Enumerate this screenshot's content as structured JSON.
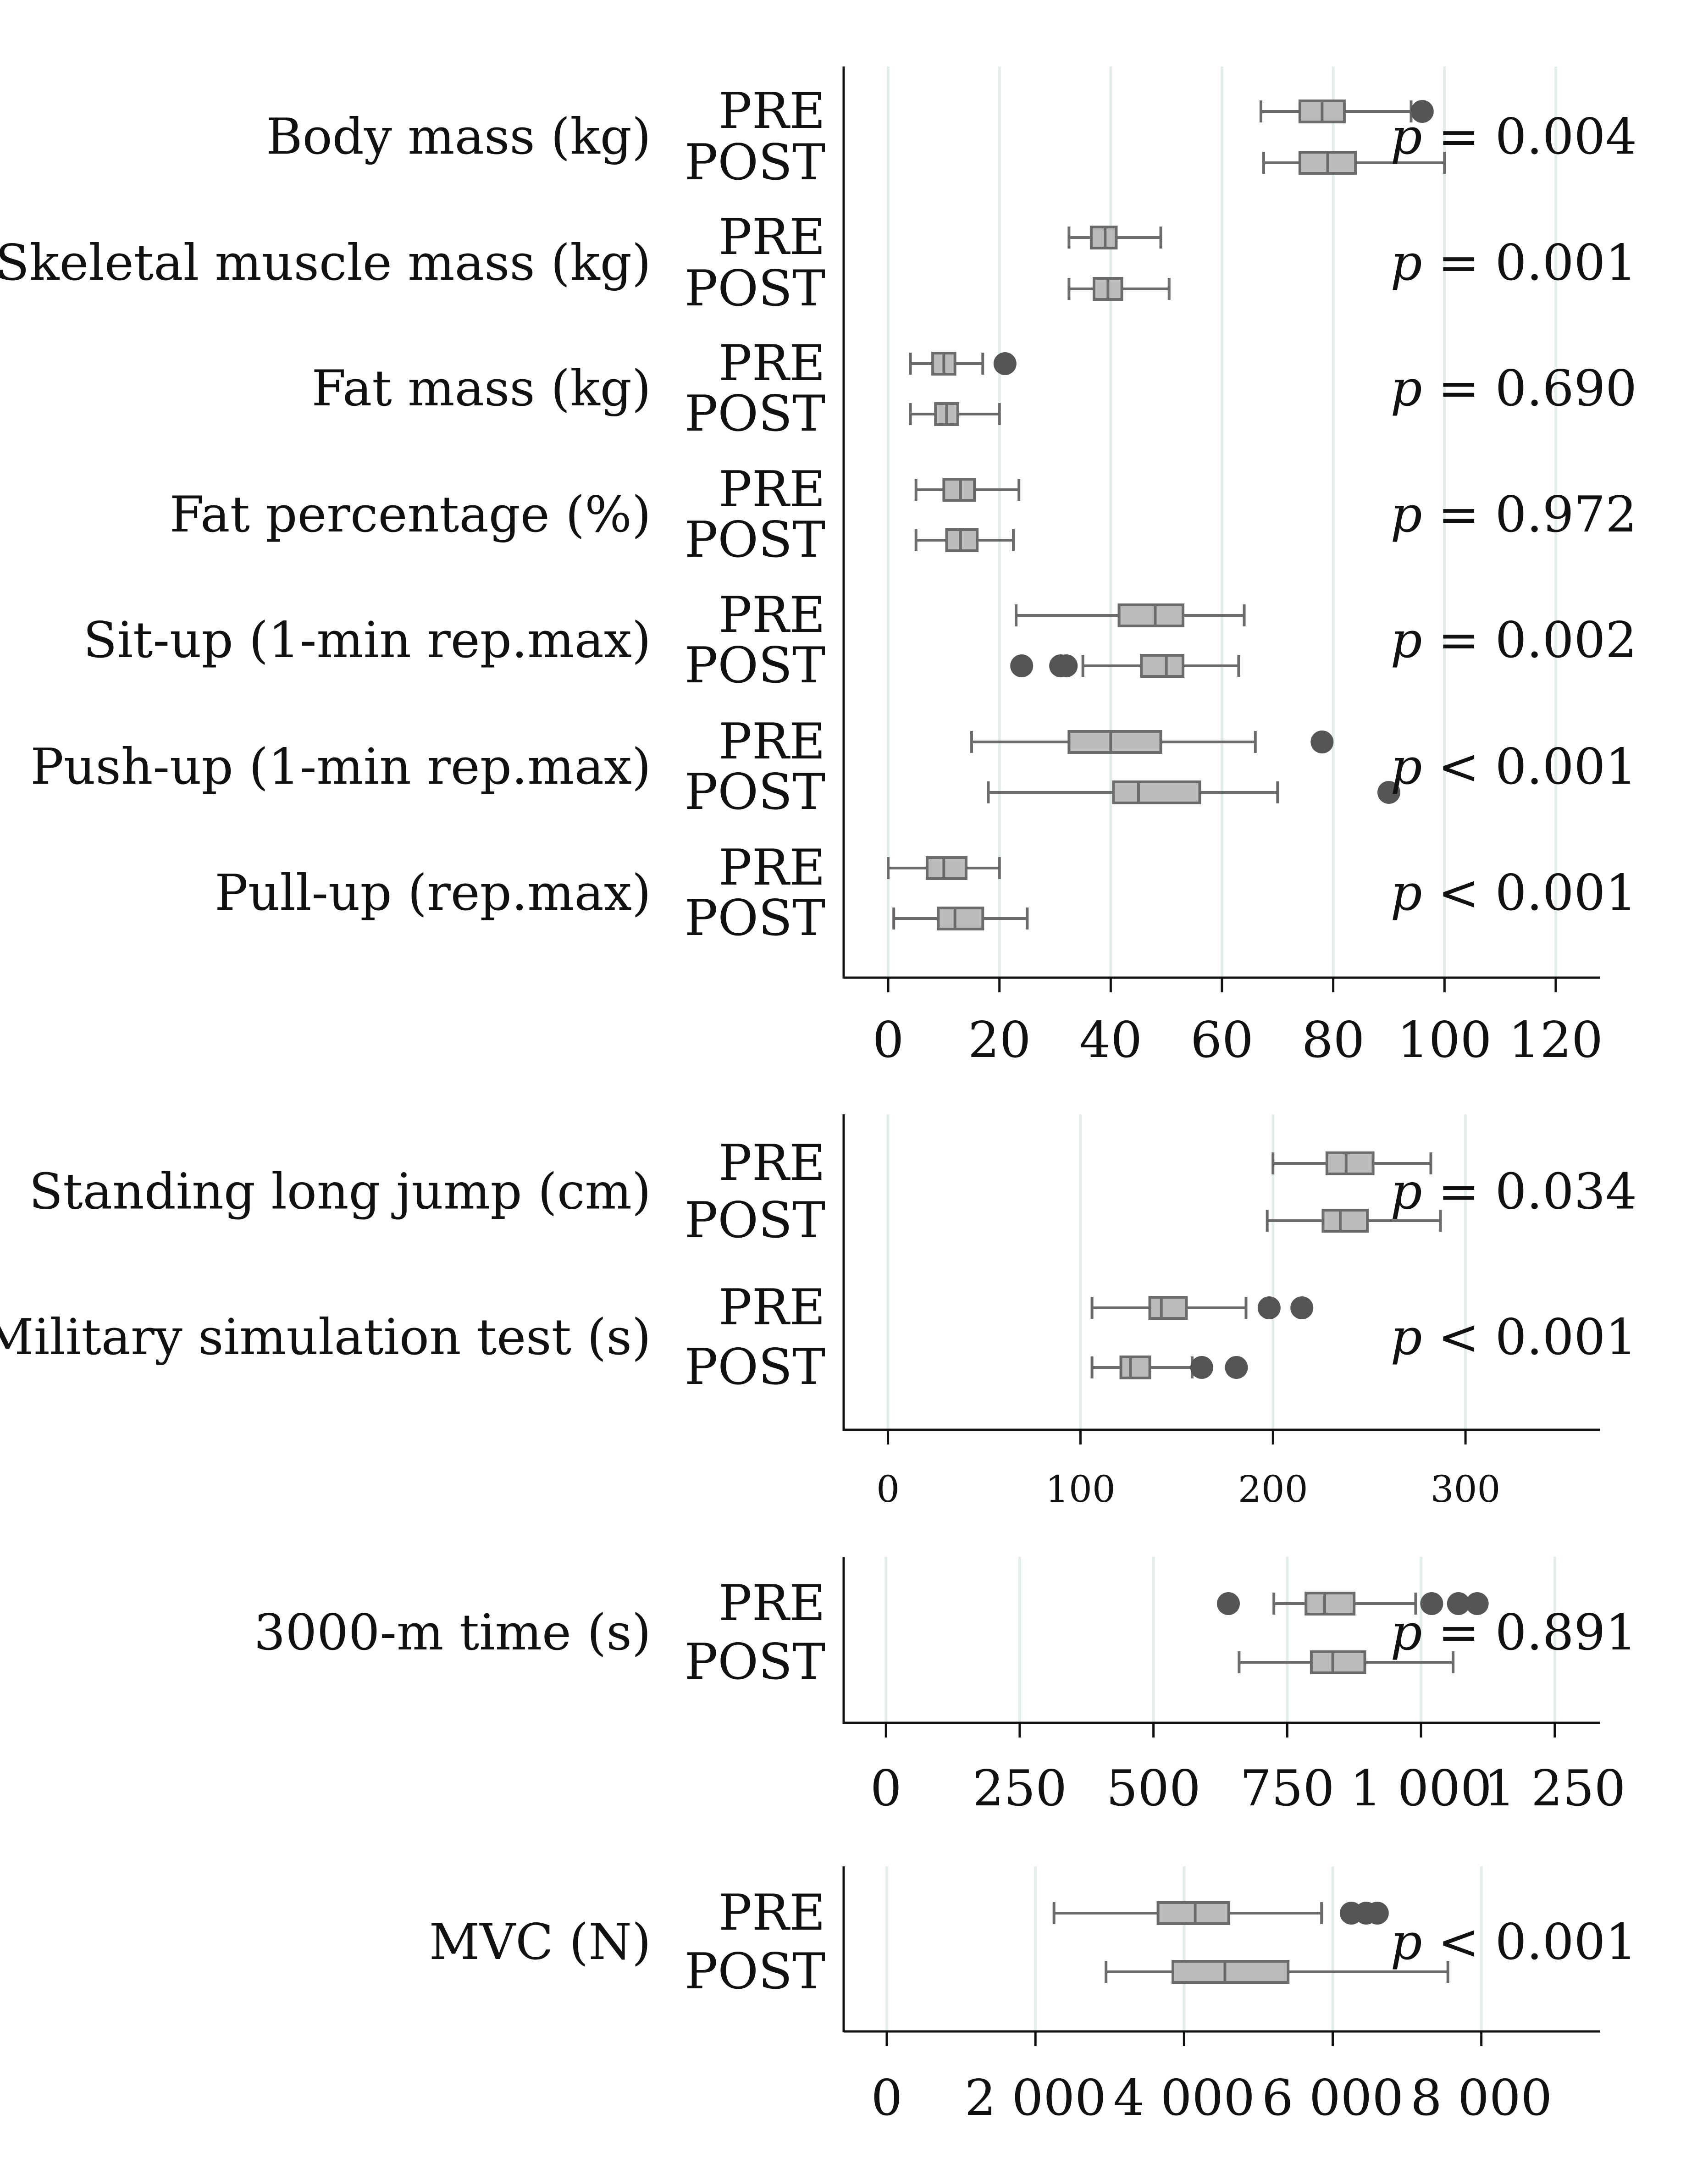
{
  "chart_data": [
    {
      "type": "boxplot",
      "panel": "anthropometrics-strength",
      "xlim": [
        -8,
        128
      ],
      "xticks": [
        0,
        20,
        40,
        60,
        80,
        100,
        120
      ],
      "xtick_labels": [
        "0",
        "20",
        "40",
        "60",
        "80",
        "100",
        "120"
      ],
      "grid": true,
      "measures": [
        {
          "label": "Body mass (kg)",
          "p_prefix": "p",
          "p_text": "= 0.004",
          "groups": [
            {
              "name": "PRE",
              "whisker_low": 67,
              "q1": 74,
              "median": 78,
              "q3": 82,
              "whisker_high": 94,
              "outliers": [
                96
              ]
            },
            {
              "name": "POST",
              "whisker_low": 67.5,
              "q1": 74,
              "median": 79,
              "q3": 84,
              "whisker_high": 100,
              "outliers": []
            }
          ]
        },
        {
          "label": "Skeletal muscle mass (kg)",
          "p_prefix": "p",
          "p_text": "= 0.001",
          "groups": [
            {
              "name": "PRE",
              "whisker_low": 32.5,
              "q1": 36.5,
              "median": 39,
              "q3": 41,
              "whisker_high": 49,
              "outliers": []
            },
            {
              "name": "POST",
              "whisker_low": 32.5,
              "q1": 37,
              "median": 39.5,
              "q3": 42,
              "whisker_high": 50.5,
              "outliers": []
            }
          ]
        },
        {
          "label": "Fat mass (kg)",
          "p_prefix": "p",
          "p_text": "= 0.690",
          "groups": [
            {
              "name": "PRE",
              "whisker_low": 4,
              "q1": 8,
              "median": 10,
              "q3": 12,
              "whisker_high": 17,
              "outliers": [
                21
              ]
            },
            {
              "name": "POST",
              "whisker_low": 4,
              "q1": 8.5,
              "median": 10.5,
              "q3": 12.5,
              "whisker_high": 20,
              "outliers": []
            }
          ]
        },
        {
          "label": "Fat percentage (%)",
          "p_prefix": "p",
          "p_text": "= 0.972",
          "groups": [
            {
              "name": "PRE",
              "whisker_low": 5,
              "q1": 10,
              "median": 13,
              "q3": 15.5,
              "whisker_high": 23.5,
              "outliers": []
            },
            {
              "name": "POST",
              "whisker_low": 5,
              "q1": 10.5,
              "median": 13,
              "q3": 16,
              "whisker_high": 22.5,
              "outliers": []
            }
          ]
        },
        {
          "label": "Sit-up (1-min rep.max)",
          "p_prefix": "p",
          "p_text": "= 0.002",
          "groups": [
            {
              "name": "PRE",
              "whisker_low": 23,
              "q1": 41.5,
              "median": 48,
              "q3": 53,
              "whisker_high": 64,
              "outliers": []
            },
            {
              "name": "POST",
              "whisker_low": 35,
              "q1": 45.5,
              "median": 50,
              "q3": 53,
              "whisker_high": 63,
              "outliers": [
                24,
                31,
                32
              ]
            }
          ]
        },
        {
          "label": "Push-up (1-min rep.max)",
          "p_prefix": "p",
          "p_text": "< 0.001",
          "groups": [
            {
              "name": "PRE",
              "whisker_low": 15,
              "q1": 32.5,
              "median": 40,
              "q3": 49,
              "whisker_high": 66,
              "outliers": [
                78
              ]
            },
            {
              "name": "POST",
              "whisker_low": 18,
              "q1": 40.5,
              "median": 45,
              "q3": 56,
              "whisker_high": 70,
              "outliers": [
                90
              ]
            }
          ]
        },
        {
          "label": "Pull-up (rep.max)",
          "p_prefix": "p",
          "p_text": "< 0.001",
          "groups": [
            {
              "name": "PRE",
              "whisker_low": 0,
              "q1": 7,
              "median": 10,
              "q3": 14,
              "whisker_high": 20,
              "outliers": []
            },
            {
              "name": "POST",
              "whisker_low": 1,
              "q1": 9,
              "median": 12,
              "q3": 17,
              "whisker_high": 25,
              "outliers": []
            }
          ]
        }
      ]
    },
    {
      "type": "boxplot",
      "panel": "jump-simulation",
      "xlim": [
        -23,
        370
      ],
      "xticks": [
        0,
        100,
        200,
        300
      ],
      "xtick_labels": [
        "0",
        "100",
        "200",
        "300"
      ],
      "grid": true,
      "measures": [
        {
          "label": "Standing long jump (cm)",
          "p_prefix": "p",
          "p_text": "= 0.034",
          "groups": [
            {
              "name": "PRE",
              "whisker_low": 200,
              "q1": 228,
              "median": 238,
              "q3": 252,
              "whisker_high": 282,
              "outliers": []
            },
            {
              "name": "POST",
              "whisker_low": 197,
              "q1": 226,
              "median": 235,
              "q3": 249,
              "whisker_high": 287,
              "outliers": []
            }
          ]
        },
        {
          "label": "Military simulation test (s)",
          "p_prefix": "p",
          "p_text": "< 0.001",
          "groups": [
            {
              "name": "PRE",
              "whisker_low": 106,
              "q1": 136,
              "median": 142,
              "q3": 155,
              "whisker_high": 186,
              "outliers": [
                198,
                215
              ]
            },
            {
              "name": "POST",
              "whisker_low": 106,
              "q1": 121,
              "median": 126,
              "q3": 136,
              "whisker_high": 158,
              "outliers": [
                163,
                181
              ]
            }
          ]
        }
      ]
    },
    {
      "type": "boxplot",
      "panel": "endurance",
      "xlim": [
        -79,
        1335
      ],
      "xticks": [
        0,
        250,
        500,
        750,
        1000,
        1250
      ],
      "xtick_labels": [
        "0",
        "250",
        "500",
        "750",
        "1 000",
        "1 250"
      ],
      "grid": true,
      "measures": [
        {
          "label": "3000-m time (s)",
          "p_prefix": "p",
          "p_text": "= 0.891",
          "groups": [
            {
              "name": "PRE",
              "whisker_low": 725,
              "q1": 785,
              "median": 820,
              "q3": 875,
              "whisker_high": 990,
              "outliers": [
                640,
                1020,
                1070,
                1105
              ]
            },
            {
              "name": "POST",
              "whisker_low": 660,
              "q1": 795,
              "median": 835,
              "q3": 895,
              "whisker_high": 1060,
              "outliers": []
            }
          ]
        }
      ]
    },
    {
      "type": "boxplot",
      "panel": "mvc",
      "xlim": [
        -580,
        9600
      ],
      "xticks": [
        0,
        2000,
        4000,
        6000,
        8000
      ],
      "xtick_labels": [
        "0",
        "2 000",
        "4 000",
        "6 000",
        "8 000"
      ],
      "grid": true,
      "measures": [
        {
          "label": "MVC (N)",
          "p_prefix": "p",
          "p_text": "< 0.001",
          "groups": [
            {
              "name": "PRE",
              "whisker_low": 2250,
              "q1": 3650,
              "median": 4150,
              "q3": 4600,
              "whisker_high": 5850,
              "outliers": [
                6250,
                6450,
                6600
              ]
            },
            {
              "name": "POST",
              "whisker_low": 2950,
              "q1": 3850,
              "median": 4550,
              "q3": 5400,
              "whisker_high": 7550,
              "outliers": []
            }
          ]
        }
      ]
    }
  ]
}
